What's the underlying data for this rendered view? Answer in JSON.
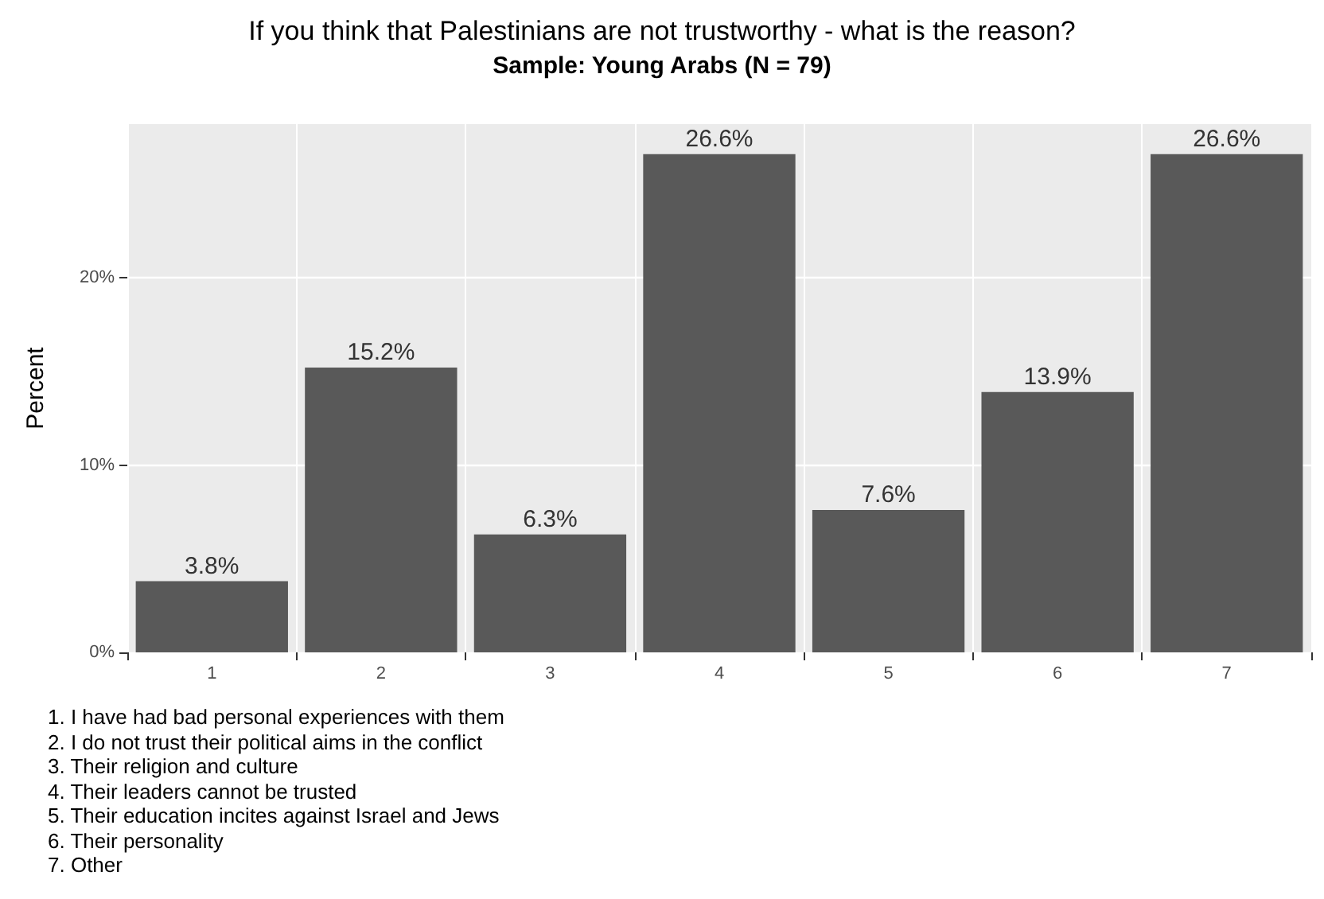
{
  "chart_data": {
    "type": "bar",
    "title": "If you think that Palestinians are not trustworthy - what is the reason?",
    "subtitle": "Sample: Young Arabs (N = 79)",
    "ylabel": "Percent",
    "categories": [
      "1",
      "2",
      "3",
      "4",
      "5",
      "6",
      "7"
    ],
    "values": [
      3.8,
      15.2,
      6.3,
      26.6,
      7.6,
      13.9,
      26.6
    ],
    "value_labels": [
      "3.8%",
      "15.2%",
      "6.3%",
      "26.6%",
      "7.6%",
      "13.9%",
      "26.6%"
    ],
    "color": "#595959",
    "ylim": [
      0,
      28.2
    ],
    "yticks": [
      {
        "value": 0,
        "label": "0%"
      },
      {
        "value": 10,
        "label": "10%"
      },
      {
        "value": 20,
        "label": "20%"
      }
    ],
    "grid": true,
    "annotations": [
      "1. I have had bad personal experiences with them",
      "2. I do not trust their political aims in the conflict",
      "3. Their religion and culture",
      "4. Their leaders cannot be trusted",
      "5. Their education incites against Israel and Jews",
      "6. Their personality",
      "7. Other"
    ]
  }
}
